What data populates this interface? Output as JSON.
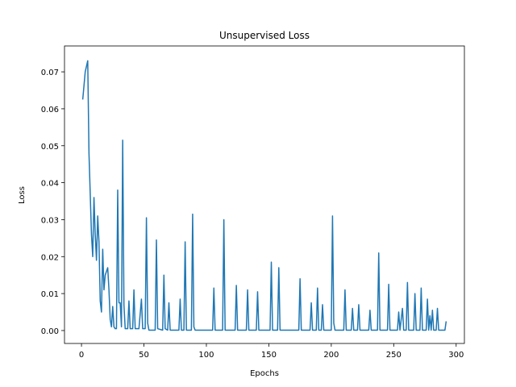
{
  "chart_data": {
    "type": "line",
    "title": "Unsupervised Loss",
    "x_label": "Epochs",
    "y_label": "Loss",
    "x": [
      1,
      3,
      5,
      6,
      8,
      9,
      10,
      11,
      12,
      13,
      14,
      15,
      16,
      17,
      18,
      19,
      21,
      22,
      23,
      24,
      25,
      26,
      27,
      28,
      29,
      30,
      31,
      32,
      33,
      34,
      35,
      37,
      38,
      39,
      41,
      42,
      43,
      46,
      48,
      49,
      51,
      52,
      53,
      54,
      59,
      60,
      61,
      65,
      66,
      67,
      69,
      70,
      71,
      78,
      79,
      80,
      82,
      83,
      84,
      88,
      89,
      90,
      91,
      105,
      106,
      107,
      113,
      114,
      115,
      123,
      124,
      125,
      132,
      133,
      134,
      140,
      141,
      142,
      151,
      152,
      153,
      157,
      158,
      159,
      174,
      175,
      176,
      183,
      184,
      185,
      188,
      189,
      190,
      192,
      193,
      194,
      200,
      201,
      202,
      203,
      210,
      211,
      212,
      216,
      217,
      218,
      221,
      222,
      223,
      230,
      231,
      232,
      237,
      238,
      239,
      245,
      246,
      247,
      253,
      254,
      255,
      257,
      258,
      260,
      261,
      262,
      266,
      267,
      268,
      271,
      272,
      273,
      276,
      277,
      278,
      279,
      280,
      281,
      282,
      284,
      285,
      286,
      291,
      292
    ],
    "series": [
      {
        "name": "Unsupervised Loss",
        "color": "#1f77b4",
        "values": [
          0.0625,
          0.07,
          0.073,
          0.048,
          0.026,
          0.02,
          0.036,
          0.026,
          0.019,
          0.031,
          0.024,
          0.008,
          0.005,
          0.022,
          0.011,
          0.015,
          0.017,
          0.011,
          0.003,
          0.001,
          0.0065,
          0.001,
          0.0005,
          0.0005,
          0.038,
          0.0075,
          0.0075,
          0.001,
          0.0515,
          0.007,
          0.0005,
          0.0005,
          0.008,
          0.0005,
          0.0005,
          0.011,
          0.0005,
          0.0005,
          0.0085,
          0.0005,
          0.0005,
          0.0305,
          0.002,
          0.0001,
          0.0001,
          0.0245,
          0.0005,
          0.0001,
          0.015,
          0.0005,
          0.0001,
          0.0075,
          0.0001,
          0.0001,
          0.0085,
          0.0001,
          0.0001,
          0.024,
          0.0001,
          0.0001,
          0.0315,
          0.001,
          0.0001,
          0.0001,
          0.0115,
          0.0001,
          0.0001,
          0.03,
          0.0001,
          0.0001,
          0.0122,
          0.0001,
          0.0001,
          0.011,
          0.0001,
          0.0001,
          0.0105,
          0.0001,
          0.0001,
          0.0185,
          0.0001,
          0.0001,
          0.017,
          0.0001,
          0.0001,
          0.014,
          0.0001,
          0.0001,
          0.0075,
          0.0001,
          0.0001,
          0.0115,
          0.0001,
          0.0001,
          0.007,
          0.0001,
          0.0001,
          0.031,
          0.002,
          0.0001,
          0.0001,
          0.011,
          0.0001,
          0.0001,
          0.006,
          0.0001,
          0.0001,
          0.007,
          0.0001,
          0.0001,
          0.0055,
          0.0001,
          0.0001,
          0.021,
          0.0001,
          0.0001,
          0.0125,
          0.0001,
          0.0001,
          0.005,
          0.0001,
          0.006,
          0.0001,
          0.0001,
          0.013,
          0.0001,
          0.0001,
          0.01,
          0.0001,
          0.0001,
          0.0115,
          0.0001,
          0.0001,
          0.0085,
          0.0001,
          0.004,
          0.0001,
          0.0055,
          0.0001,
          0.0001,
          0.006,
          0.0001,
          0.0001,
          0.0025
        ]
      }
    ],
    "xlim": [
      -13.6,
      306.6
    ],
    "xticks": [
      0,
      50,
      100,
      150,
      200,
      250,
      300
    ],
    "ylim": [
      -0.0035,
      0.077
    ],
    "yticks": [
      {
        "value": 0,
        "label": "0.00"
      },
      {
        "value": 0.01,
        "label": "0.01"
      },
      {
        "value": 0.02,
        "label": "0.02"
      },
      {
        "value": 0.03,
        "label": "0.03"
      },
      {
        "value": 0.04,
        "label": "0.04"
      },
      {
        "value": 0.05,
        "label": "0.05"
      },
      {
        "value": 0.06,
        "label": "0.06"
      },
      {
        "value": 0.07,
        "label": "0.07"
      }
    ],
    "grid": false
  }
}
